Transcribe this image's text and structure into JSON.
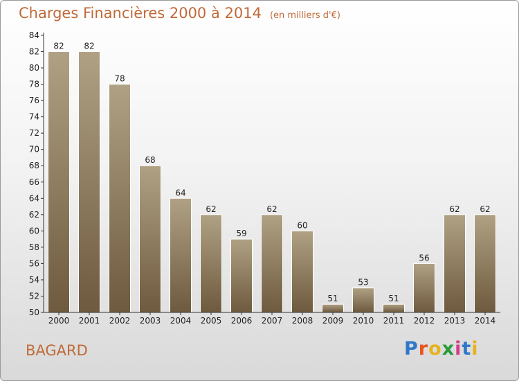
{
  "header": {
    "title": "Charges Financières 2000 à 2014",
    "subtitle": "(en milliers d'€)"
  },
  "footer": {
    "commune": "BAGARD",
    "logo_text": "Proxiti",
    "logo_colors": [
      "#2e78c8",
      "#e8551e",
      "#e8b21e",
      "#2a9a3a",
      "#d23a8a",
      "#2e78c8",
      "#e8b21e"
    ]
  },
  "colors": {
    "title": "#c06a3a",
    "bar_top": "#b0a184",
    "bar_bottom": "#6e5a3e",
    "bar_stroke": "#ffffff"
  },
  "chart_data": {
    "type": "bar",
    "categories": [
      "2000",
      "2001",
      "2002",
      "2003",
      "2004",
      "2005",
      "2006",
      "2007",
      "2008",
      "2009",
      "2010",
      "2011",
      "2012",
      "2013",
      "2014"
    ],
    "values": [
      82,
      82,
      78,
      68,
      64,
      62,
      59,
      62,
      60,
      51,
      53,
      51,
      56,
      62,
      62
    ],
    "value_labels": [
      "82",
      "82",
      "78",
      "68",
      "64",
      "62",
      "59",
      "62",
      "60",
      "51",
      "53",
      "51",
      "56",
      "62",
      "62"
    ],
    "ylim": [
      50,
      84
    ],
    "yticks": [
      "50",
      "52",
      "54",
      "56",
      "58",
      "60",
      "62",
      "64",
      "66",
      "68",
      "70",
      "72",
      "74",
      "76",
      "78",
      "80",
      "82",
      "84"
    ],
    "grid": false,
    "legend": "none",
    "xlabel": "",
    "ylabel": ""
  }
}
